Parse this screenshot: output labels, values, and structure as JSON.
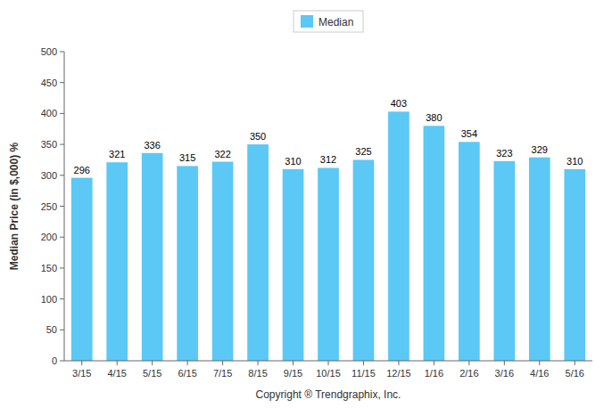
{
  "chart_data": {
    "type": "bar",
    "categories": [
      "3/15",
      "4/15",
      "5/15",
      "6/15",
      "7/15",
      "8/15",
      "9/15",
      "10/15",
      "11/15",
      "12/15",
      "1/16",
      "2/16",
      "3/16",
      "4/16",
      "5/16"
    ],
    "series": [
      {
        "name": "Median",
        "color": "#5BC8F5",
        "values": [
          296,
          321,
          336,
          315,
          322,
          350,
          310,
          312,
          325,
          403,
          380,
          354,
          323,
          329,
          310
        ]
      }
    ],
    "ylabel": "Median Price (in $,000) %",
    "xlabel": "Copyright ® Trendgraphix, Inc.",
    "ylim": [
      0,
      500
    ],
    "yticks": [
      0,
      50,
      100,
      150,
      200,
      250,
      300,
      350,
      400,
      450,
      500
    ],
    "data_labels": true,
    "legend": "top",
    "grid": false
  }
}
